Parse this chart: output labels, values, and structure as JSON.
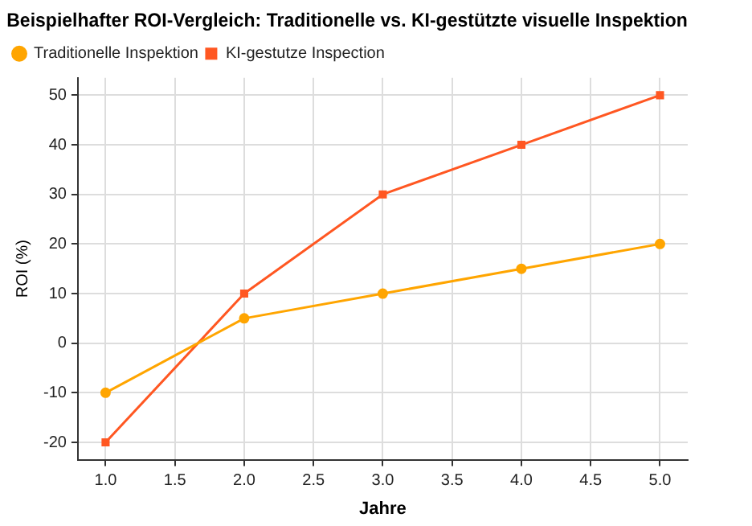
{
  "chart_data": {
    "type": "line",
    "title": "Beispielhafter ROI-Vergleich: Traditionelle vs. KI-gestützte visuelle Inspektion",
    "xlabel": "Jahre",
    "ylabel": "ROI (%)",
    "x": [
      1,
      2,
      3,
      4,
      5
    ],
    "series": [
      {
        "name": "Traditionelle Inspektion",
        "color": "#ffa500",
        "values": [
          -10,
          5,
          10,
          15,
          20
        ],
        "marker": "circle"
      },
      {
        "name": "KI-gestutze Inspection",
        "color": "#ff5722",
        "values": [
          -20,
          10,
          30,
          40,
          50
        ],
        "marker": "square"
      }
    ],
    "xlim": [
      0.8,
      5.2
    ],
    "xticks": [
      {
        "value": 1,
        "label": "1.0"
      },
      {
        "value": 1.5,
        "label": "1.5"
      },
      {
        "value": 2,
        "label": "2.0"
      },
      {
        "value": 2.5,
        "label": "2.5"
      },
      {
        "value": 3,
        "label": "3.0"
      },
      {
        "value": 3.5,
        "label": "3.5"
      },
      {
        "value": 4,
        "label": "4.0"
      },
      {
        "value": 4.5,
        "label": "4.5"
      },
      {
        "value": 5,
        "label": "5.0"
      }
    ],
    "ylim": [
      -23.5,
      53.5
    ],
    "yticks": [
      -20,
      -10,
      0,
      10,
      20,
      30,
      40,
      50
    ],
    "grid": true,
    "legend": "top left",
    "line_style": "solid"
  }
}
